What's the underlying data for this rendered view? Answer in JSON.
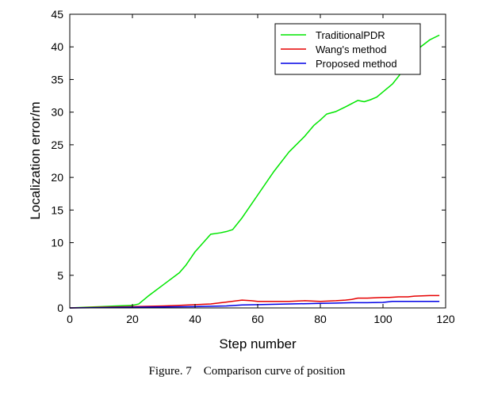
{
  "caption": "Figure. 7    Comparison curve of position",
  "chart_data": {
    "type": "line",
    "xlabel": "Step number",
    "ylabel": "Localization error/m",
    "xlim": [
      0,
      120
    ],
    "ylim": [
      0,
      45
    ],
    "xticks": [
      0,
      20,
      40,
      60,
      80,
      100,
      120
    ],
    "yticks": [
      0,
      5,
      10,
      15,
      20,
      25,
      30,
      35,
      40,
      45
    ],
    "grid": false,
    "legend_position": "top-right",
    "series": [
      {
        "name": "TraditionalPDR",
        "color": "#00e600",
        "x": [
          0,
          5,
          10,
          15,
          20,
          22,
          25,
          30,
          35,
          37,
          40,
          45,
          48,
          50,
          52,
          55,
          60,
          65,
          70,
          75,
          78,
          80,
          82,
          85,
          88,
          90,
          92,
          94,
          96,
          98,
          100,
          103,
          105,
          108,
          110,
          112,
          115,
          118
        ],
        "y": [
          0,
          0.1,
          0.2,
          0.3,
          0.4,
          0.6,
          1.8,
          3.6,
          5.4,
          6.5,
          8.6,
          11.3,
          11.5,
          11.7,
          12.0,
          13.8,
          17.3,
          20.8,
          23.9,
          26.3,
          28.0,
          28.8,
          29.7,
          30.1,
          30.8,
          31.3,
          31.8,
          31.6,
          31.9,
          32.3,
          33.1,
          34.3,
          35.5,
          37.5,
          38.8,
          40.0,
          41.1,
          41.8
        ]
      },
      {
        "name": "Wang's method",
        "color": "#e60000",
        "x": [
          0,
          10,
          20,
          30,
          35,
          40,
          45,
          50,
          55,
          58,
          60,
          65,
          70,
          75,
          80,
          85,
          88,
          90,
          92,
          95,
          100,
          102,
          105,
          108,
          110,
          115,
          118
        ],
        "y": [
          0,
          0.1,
          0.2,
          0.3,
          0.4,
          0.5,
          0.6,
          0.9,
          1.2,
          1.1,
          1.0,
          1.0,
          1.0,
          1.1,
          1.0,
          1.1,
          1.2,
          1.3,
          1.5,
          1.5,
          1.6,
          1.6,
          1.7,
          1.7,
          1.8,
          1.9,
          1.9
        ]
      },
      {
        "name": "Proposed method",
        "color": "#0000e6",
        "x": [
          0,
          10,
          20,
          30,
          40,
          50,
          55,
          60,
          70,
          80,
          85,
          90,
          95,
          100,
          103,
          105,
          110,
          118
        ],
        "y": [
          0,
          0.05,
          0.1,
          0.15,
          0.2,
          0.3,
          0.45,
          0.5,
          0.6,
          0.7,
          0.75,
          0.8,
          0.8,
          0.85,
          1.0,
          1.0,
          1.0,
          1.0
        ]
      }
    ]
  }
}
